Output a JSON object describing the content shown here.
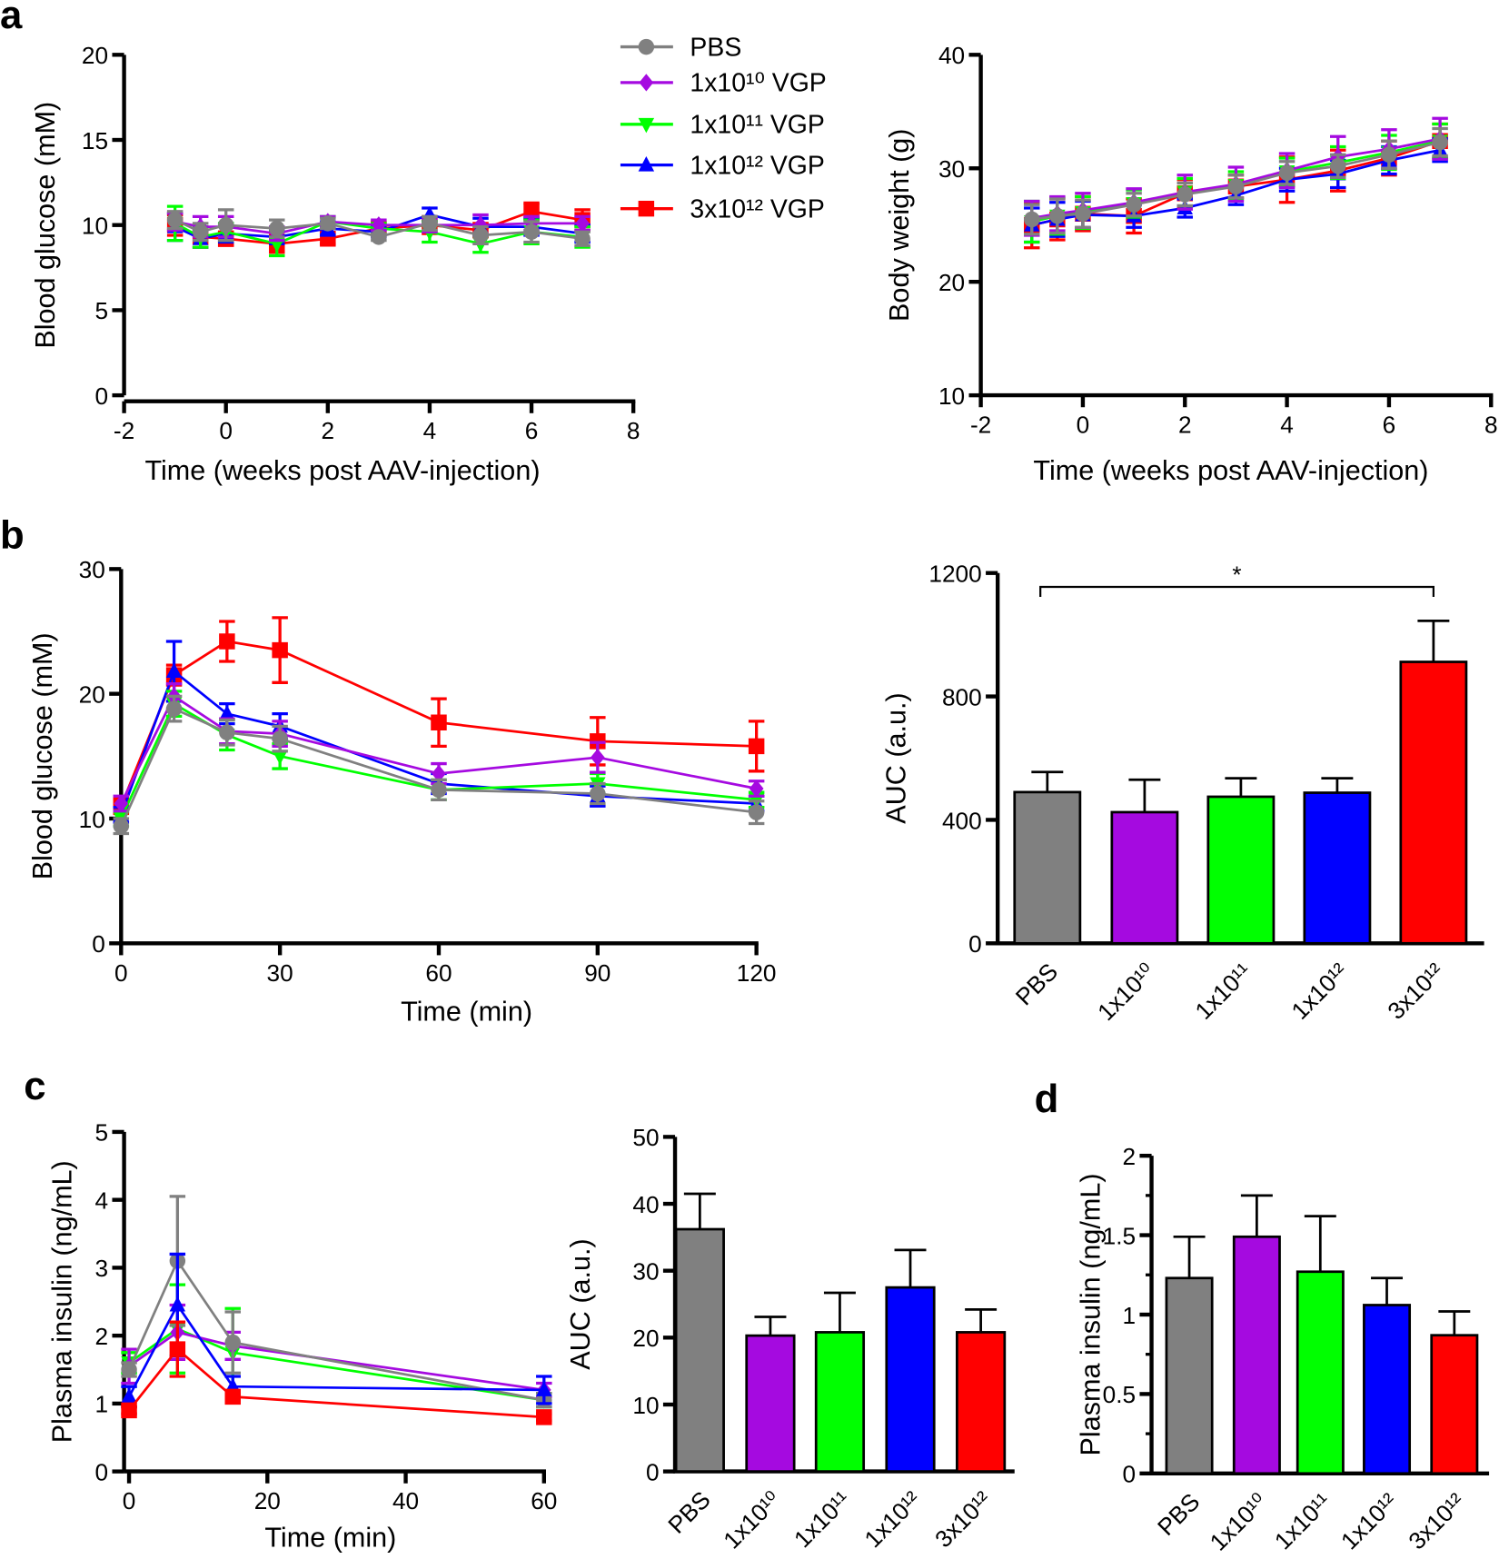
{
  "panel_letters": [
    "a",
    "b",
    "c",
    "d"
  ],
  "colors": {
    "PBS": "#808080",
    "1x10¹⁰": "#a50ae0",
    "1x10¹¹": "#00ff00",
    "1x10¹²": "#0000ff",
    "3x10¹²": "#ff0000"
  },
  "legend": {
    "placement": "top-center of panel a",
    "entries": [
      {
        "name": "PBS",
        "marker": "circle",
        "color": "#808080"
      },
      {
        "name": "1x10¹⁰ VGP",
        "marker": "diamond",
        "color": "#a50ae0"
      },
      {
        "name": "1x10¹¹ VGP",
        "marker": "triangle-down",
        "color": "#00ff00"
      },
      {
        "name": "1x10¹² VGP",
        "marker": "triangle-up",
        "color": "#0000ff"
      },
      {
        "name": "3x10¹² VGP",
        "marker": "square",
        "color": "#ff0000"
      }
    ]
  },
  "chart_data": [
    {
      "panel": "a",
      "type": "line",
      "xlabel": "Time (weeks post AAV-injection)",
      "ylabel": "Blood glucose (mM)",
      "xlim": [
        -2,
        8
      ],
      "ylim": [
        0,
        20
      ],
      "xticks": [
        -2,
        0,
        2,
        4,
        6,
        8
      ],
      "yticks": [
        0,
        5,
        10,
        15,
        20
      ],
      "x": [
        -1,
        -0.5,
        0,
        1,
        2,
        3,
        4,
        5,
        6,
        7
      ],
      "series": [
        {
          "name": "3x10¹² VGP",
          "values": [
            10.0,
            9.3,
            9.2,
            8.9,
            9.2,
            9.8,
            10.0,
            9.7,
            10.8,
            10.3
          ],
          "sem": [
            0.6,
            0.6,
            0.4,
            0.5,
            0.3,
            0.3,
            0.5,
            0.4,
            0.5,
            0.6
          ]
        },
        {
          "name": "1x10¹² VGP",
          "values": [
            9.9,
            9.2,
            9.5,
            9.3,
            9.8,
            9.6,
            10.6,
            9.9,
            9.9,
            9.5
          ],
          "sem": [
            0.8,
            0.5,
            0.5,
            0.4,
            0.4,
            0.3,
            0.4,
            0.5,
            0.5,
            0.5
          ]
        },
        {
          "name": "1x10¹¹ VGP",
          "values": [
            10.1,
            9.3,
            9.6,
            8.9,
            10.2,
            9.8,
            9.6,
            8.9,
            9.6,
            9.3
          ],
          "sem": [
            1.0,
            0.6,
            0.5,
            0.7,
            0.3,
            0.3,
            0.6,
            0.5,
            0.7,
            0.6
          ]
        },
        {
          "name": "1x10¹⁰ VGP",
          "values": [
            10.2,
            9.9,
            9.9,
            9.5,
            10.2,
            10.0,
            10.0,
            10.0,
            10.1,
            10.1
          ],
          "sem": [
            0.5,
            0.6,
            0.6,
            0.4,
            0.3,
            0.3,
            0.4,
            0.6,
            0.4,
            0.4
          ]
        },
        {
          "name": "PBS",
          "values": [
            10.3,
            9.6,
            10.0,
            9.8,
            10.1,
            9.3,
            10.1,
            9.4,
            9.6,
            9.2
          ],
          "sem": [
            0.5,
            0.5,
            0.9,
            0.5,
            0.3,
            0.2,
            0.4,
            0.5,
            0.6,
            0.4
          ]
        }
      ]
    },
    {
      "panel": "a",
      "type": "line",
      "xlabel": "Time (weeks post AAV-injection)",
      "ylabel": "Body weight (g)",
      "xlim": [
        -2,
        8
      ],
      "ylim": [
        10,
        40
      ],
      "xticks": [
        -2,
        0,
        2,
        4,
        6,
        8
      ],
      "yticks": [
        10,
        20,
        30,
        40
      ],
      "x": [
        -1,
        -0.5,
        0,
        1,
        2,
        3,
        4,
        5,
        6,
        7
      ],
      "series": [
        {
          "name": "3x10¹² VGP",
          "values": [
            25.0,
            25.5,
            26.0,
            25.8,
            27.8,
            28.4,
            29.0,
            29.8,
            30.9,
            32.4
          ],
          "sem": [
            2.0,
            1.8,
            1.5,
            1.5,
            1.2,
            1.0,
            2.0,
            1.8,
            1.5,
            1.5
          ]
        },
        {
          "name": "1x10¹² VGP",
          "values": [
            25.0,
            25.5,
            25.9,
            25.8,
            26.5,
            27.6,
            29.0,
            29.5,
            30.7,
            31.6
          ],
          "sem": [
            1.5,
            1.5,
            1.2,
            1.0,
            0.8,
            0.8,
            1.0,
            1.2,
            1.2,
            1.0
          ]
        },
        {
          "name": "1x10¹¹ VGP",
          "values": [
            25.3,
            25.8,
            26.1,
            26.9,
            27.9,
            28.5,
            29.7,
            30.5,
            31.4,
            32.4
          ],
          "sem": [
            1.8,
            1.6,
            1.4,
            1.2,
            1.2,
            1.2,
            1.2,
            1.4,
            1.5,
            1.5
          ]
        },
        {
          "name": "1x10¹⁰ VGP",
          "values": [
            25.6,
            26.0,
            26.3,
            27.0,
            27.9,
            28.6,
            29.8,
            31.0,
            31.7,
            32.6
          ],
          "sem": [
            1.5,
            1.5,
            1.5,
            1.2,
            1.5,
            1.5,
            1.5,
            1.8,
            1.7,
            1.8
          ]
        },
        {
          "name": "PBS",
          "values": [
            25.5,
            25.8,
            26.0,
            26.8,
            27.7,
            28.4,
            29.6,
            30.2,
            31.2,
            32.3
          ],
          "sem": [
            1.3,
            1.5,
            1.2,
            1.0,
            1.0,
            1.0,
            1.0,
            1.0,
            1.2,
            1.2
          ]
        }
      ]
    },
    {
      "panel": "b",
      "type": "line",
      "xlabel": "Time (min)",
      "ylabel": "Blood glucose (mM)",
      "xlim": [
        0,
        120
      ],
      "ylim": [
        0,
        30
      ],
      "xticks": [
        0,
        30,
        60,
        90,
        120
      ],
      "yticks": [
        0,
        10,
        20,
        30
      ],
      "x": [
        0,
        10,
        20,
        30,
        60,
        90,
        120
      ],
      "series": [
        {
          "name": "3x10¹² VGP",
          "values": [
            11.0,
            21.5,
            24.2,
            23.5,
            17.7,
            16.2,
            15.8
          ],
          "sem": [
            0.6,
            0.8,
            1.6,
            2.6,
            1.9,
            1.9,
            2.0
          ]
        },
        {
          "name": "1x10¹² VGP",
          "values": [
            10.3,
            21.8,
            18.4,
            17.4,
            12.8,
            11.8,
            11.2
          ],
          "sem": [
            0.6,
            2.4,
            0.8,
            1.0,
            0.8,
            0.8,
            0.6
          ]
        },
        {
          "name": "1x10¹¹ VGP",
          "values": [
            10.0,
            19.2,
            16.7,
            15.0,
            12.3,
            12.8,
            11.5
          ],
          "sem": [
            0.6,
            1.0,
            1.2,
            1.0,
            0.8,
            0.8,
            0.6
          ]
        },
        {
          "name": "1x10¹⁰ VGP",
          "values": [
            11.2,
            19.8,
            17.0,
            16.8,
            13.6,
            14.9,
            12.4
          ],
          "sem": [
            0.6,
            1.0,
            1.0,
            1.0,
            0.8,
            1.2,
            0.6
          ]
        },
        {
          "name": "PBS",
          "values": [
            9.4,
            18.8,
            16.9,
            16.4,
            12.3,
            12.0,
            10.5
          ],
          "sem": [
            0.6,
            1.0,
            1.0,
            1.0,
            0.8,
            0.8,
            0.9
          ]
        }
      ]
    },
    {
      "panel": "b",
      "type": "bar",
      "ylabel": "AUC (a.u.)",
      "ylim": [
        0,
        1200
      ],
      "yticks": [
        0,
        400,
        800,
        1200
      ],
      "categories": [
        "PBS",
        "1x10¹⁰",
        "1x10¹¹",
        "1x10¹²",
        "3x10¹²"
      ],
      "values": [
        490,
        425,
        475,
        488,
        912
      ],
      "sem": [
        65,
        105,
        60,
        47,
        133
      ],
      "annotation": {
        "text": "*",
        "from": "PBS",
        "to": "3x10¹²"
      }
    },
    {
      "panel": "c",
      "type": "line",
      "xlabel": "Time (min)",
      "ylabel": "Plasma insulin (ng/mL)",
      "xlim": [
        0,
        60
      ],
      "ylim": [
        0,
        5
      ],
      "xticks": [
        0,
        20,
        40,
        60
      ],
      "yticks": [
        0,
        1,
        2,
        3,
        4,
        5
      ],
      "x": [
        0,
        7,
        15,
        60
      ],
      "series": [
        {
          "name": "1x10¹¹ VGP",
          "values": [
            1.6,
            2.1,
            1.75,
            1.05
          ],
          "sem": [
            0.15,
            0.65,
            0.65,
            0.1
          ]
        },
        {
          "name": "1x10¹⁰ VGP",
          "values": [
            1.55,
            2.05,
            1.85,
            1.2
          ],
          "sem": [
            0.25,
            0.4,
            0.2,
            0.1
          ]
        },
        {
          "name": "PBS",
          "values": [
            1.5,
            3.1,
            1.9,
            1.05
          ],
          "sem": [
            0.1,
            0.95,
            0.45,
            0.1
          ]
        },
        {
          "name": "1x10¹² VGP",
          "values": [
            1.1,
            2.45,
            1.25,
            1.2
          ],
          "sem": [
            0.15,
            0.75,
            0.15,
            0.2
          ]
        },
        {
          "name": "3x10¹² VGP",
          "values": [
            0.9,
            1.8,
            1.1,
            0.8
          ],
          "sem": [
            0.05,
            0.4,
            0.05,
            0.05
          ]
        }
      ]
    },
    {
      "panel": "c",
      "type": "bar",
      "ylabel": "AUC (a.u.)",
      "ylim": [
        0,
        50
      ],
      "yticks": [
        0,
        10,
        20,
        30,
        40,
        50
      ],
      "categories": [
        "PBS",
        "1x10¹⁰",
        "1x10¹¹",
        "1x10¹²",
        "3x10¹²"
      ],
      "values": [
        36.2,
        20.3,
        20.8,
        27.5,
        20.8
      ],
      "sem": [
        5.3,
        2.8,
        5.9,
        5.6,
        3.4
      ]
    },
    {
      "panel": "d",
      "type": "bar",
      "ylabel": "Plasma insulin (ng/mL)",
      "ylim": [
        0,
        2
      ],
      "yticks": [
        0,
        0.5,
        1,
        1.5,
        2
      ],
      "categories": [
        "PBS",
        "1x10¹⁰",
        "1x10¹¹",
        "1x10¹²",
        "3x10¹²"
      ],
      "values": [
        1.23,
        1.49,
        1.27,
        1.06,
        0.87
      ],
      "sem": [
        0.26,
        0.26,
        0.35,
        0.17,
        0.15
      ]
    }
  ]
}
